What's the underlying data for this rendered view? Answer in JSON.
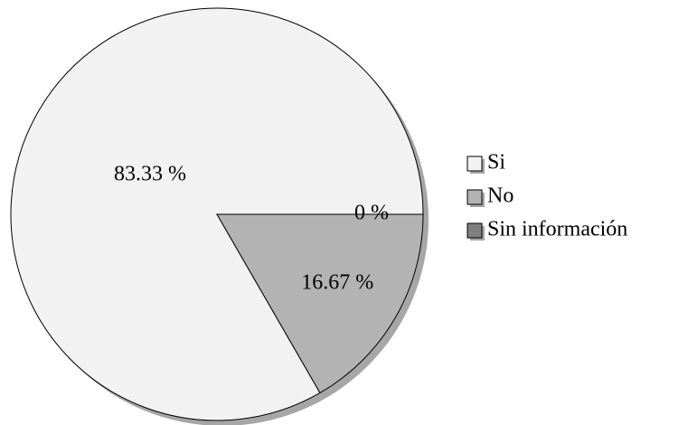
{
  "chart_data": {
    "type": "pie",
    "categories": [
      "Si",
      "No",
      "Sin información"
    ],
    "values": [
      83.33,
      16.67,
      0
    ],
    "value_labels": [
      "83.33 %",
      "16.67 %",
      "0 %"
    ],
    "colors": [
      "#f2f2f2",
      "#b3b3b3",
      "#808080"
    ],
    "legend": "right"
  }
}
